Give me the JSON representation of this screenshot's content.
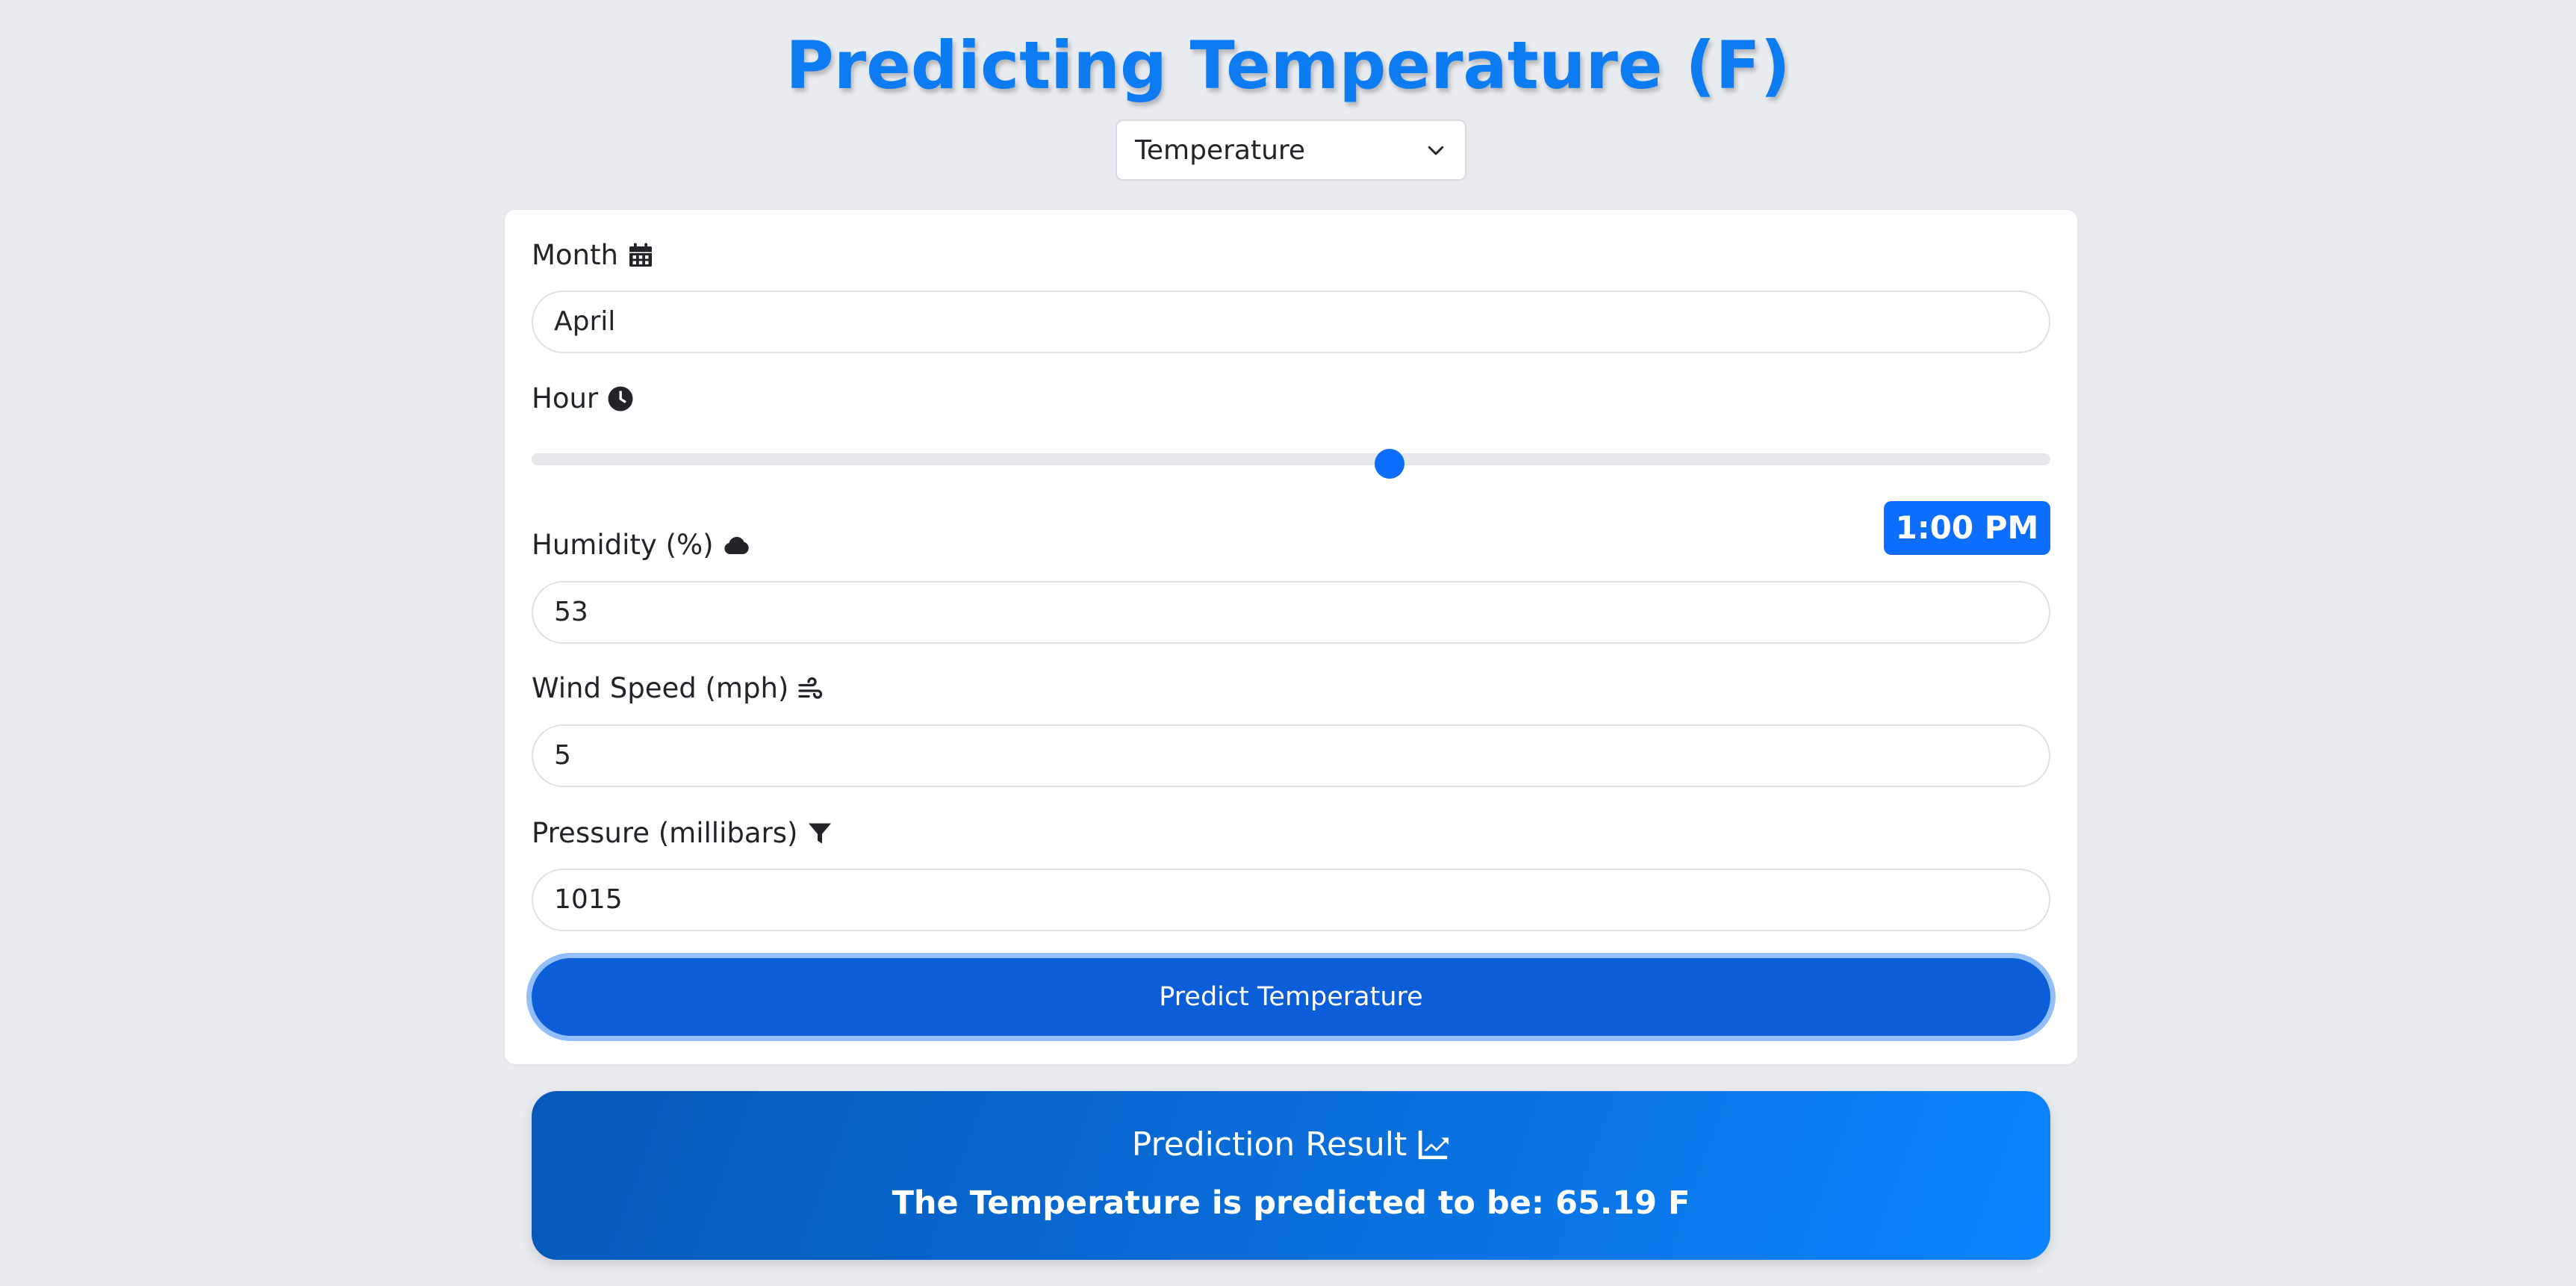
{
  "page": {
    "title": "Predicting Temperature (F)"
  },
  "target_select": {
    "selected": "Temperature",
    "icon": "chevron-down-icon"
  },
  "form": {
    "month": {
      "label": "Month",
      "icon": "calendar-icon",
      "value": "April"
    },
    "hour": {
      "label": "Hour",
      "icon": "clock-icon",
      "slider_fraction": 0.565,
      "display": "1:00 PM"
    },
    "humidity": {
      "label": "Humidity (%)",
      "icon": "cloud-icon",
      "value": "53"
    },
    "wind_speed": {
      "label": "Wind Speed (mph)",
      "icon": "wind-icon",
      "value": "5"
    },
    "pressure": {
      "label": "Pressure (millibars)",
      "icon": "filter-icon",
      "value": "1015"
    },
    "submit_label": "Predict Temperature"
  },
  "result": {
    "title": "Prediction Result",
    "icon": "chart-line-icon",
    "text": "The Temperature is predicted to be: 65.19 F"
  },
  "colors": {
    "accent": "#0d6efd",
    "title": "#0d7cf2",
    "background": "#e8ebef"
  }
}
